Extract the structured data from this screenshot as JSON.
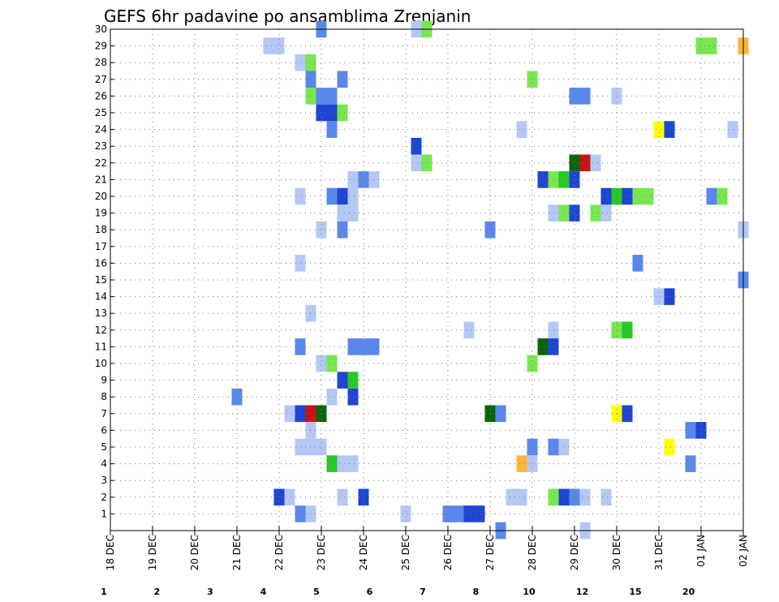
{
  "chart_data": {
    "type": "heatmap",
    "title": "GEFS 6hr padavine po ansamblima Zrenjanin",
    "x_tick_labels": [
      "18 DEC",
      "19 DEC",
      "20 DEC",
      "21 DEC",
      "22 DEC",
      "23 DEC",
      "24 DEC",
      "25 DEC",
      "26 DEC",
      "27 DEC",
      "28 DEC",
      "29 DEC",
      "30 DEC",
      "31 DEC",
      "01 JAN",
      "02 JAN"
    ],
    "y_tick_labels": [
      "1",
      "2",
      "3",
      "4",
      "5",
      "6",
      "7",
      "8",
      "9",
      "10",
      "11",
      "12",
      "13",
      "14",
      "15",
      "16",
      "17",
      "18",
      "19",
      "20",
      "21",
      "22",
      "23",
      "24",
      "25",
      "26",
      "27",
      "28",
      "29",
      "30"
    ],
    "xlim": [
      0,
      60
    ],
    "ylim": [
      0,
      30
    ],
    "grid": true,
    "colorbar": {
      "labels": [
        "1",
        "2",
        "3",
        "4",
        "5",
        "6",
        "7",
        "8",
        "10",
        "12",
        "15",
        "20"
      ],
      "colors": [
        "#b4c8f5",
        "#5a87eb",
        "#1e46d2",
        "#78e650",
        "#28c828",
        "#0a640a",
        "#ffff00",
        "#ffb43c",
        "#ff8c1e",
        "#e6461e",
        "#c81414",
        "#6e0000"
      ]
    },
    "cells": [
      {
        "member": 30,
        "steps": [
          [
            20,
            2
          ],
          [
            29,
            1
          ],
          [
            30,
            4
          ]
        ]
      },
      {
        "member": 29,
        "steps": [
          [
            15,
            1
          ],
          [
            16,
            1
          ],
          [
            56,
            4
          ],
          [
            57,
            4
          ],
          [
            60,
            8
          ]
        ]
      },
      {
        "member": 28,
        "steps": [
          [
            18,
            1
          ],
          [
            19,
            4
          ]
        ]
      },
      {
        "member": 27,
        "steps": [
          [
            19,
            2
          ],
          [
            22,
            2
          ],
          [
            40,
            4
          ]
        ]
      },
      {
        "member": 26,
        "steps": [
          [
            19,
            4
          ],
          [
            20,
            2
          ],
          [
            21,
            2
          ],
          [
            44,
            2
          ],
          [
            45,
            2
          ],
          [
            48,
            1
          ]
        ]
      },
      {
        "member": 25,
        "steps": [
          [
            20,
            3
          ],
          [
            21,
            3
          ],
          [
            22,
            4
          ]
        ]
      },
      {
        "member": 24,
        "steps": [
          [
            21,
            2
          ],
          [
            39,
            1
          ],
          [
            52,
            7
          ],
          [
            53,
            3
          ],
          [
            59,
            1
          ]
        ]
      },
      {
        "member": 23,
        "steps": [
          [
            29,
            3
          ]
        ]
      },
      {
        "member": 22,
        "steps": [
          [
            29,
            1
          ],
          [
            30,
            4
          ],
          [
            44,
            6
          ],
          [
            45,
            11
          ],
          [
            46,
            1
          ]
        ]
      },
      {
        "member": 21,
        "steps": [
          [
            23,
            1
          ],
          [
            24,
            2
          ],
          [
            25,
            1
          ],
          [
            41,
            3
          ],
          [
            42,
            4
          ],
          [
            43,
            5
          ],
          [
            44,
            3
          ]
        ]
      },
      {
        "member": 20,
        "steps": [
          [
            18,
            1
          ],
          [
            21,
            2
          ],
          [
            22,
            3
          ],
          [
            23,
            1
          ],
          [
            47,
            3
          ],
          [
            48,
            5
          ],
          [
            49,
            3
          ],
          [
            50,
            4
          ],
          [
            51,
            4
          ],
          [
            57,
            2
          ],
          [
            58,
            4
          ]
        ]
      },
      {
        "member": 19,
        "steps": [
          [
            22,
            1
          ],
          [
            23,
            1
          ],
          [
            42,
            1
          ],
          [
            43,
            4
          ],
          [
            44,
            3
          ],
          [
            46,
            4
          ],
          [
            47,
            1
          ]
        ]
      },
      {
        "member": 18,
        "steps": [
          [
            20,
            1
          ],
          [
            22,
            2
          ],
          [
            36,
            2
          ],
          [
            60,
            1
          ]
        ]
      },
      {
        "member": 16,
        "steps": [
          [
            18,
            1
          ],
          [
            50,
            2
          ]
        ]
      },
      {
        "member": 15,
        "steps": [
          [
            60,
            2
          ]
        ]
      },
      {
        "member": 14,
        "steps": [
          [
            52,
            1
          ],
          [
            53,
            3
          ]
        ]
      },
      {
        "member": 13,
        "steps": [
          [
            19,
            1
          ]
        ]
      },
      {
        "member": 12,
        "steps": [
          [
            34,
            1
          ],
          [
            42,
            1
          ],
          [
            48,
            4
          ],
          [
            49,
            5
          ]
        ]
      },
      {
        "member": 11,
        "steps": [
          [
            18,
            2
          ],
          [
            23,
            2
          ],
          [
            24,
            2
          ],
          [
            25,
            2
          ],
          [
            41,
            6
          ],
          [
            42,
            3
          ]
        ]
      },
      {
        "member": 10,
        "steps": [
          [
            20,
            1
          ],
          [
            21,
            4
          ],
          [
            40,
            4
          ]
        ]
      },
      {
        "member": 9,
        "steps": [
          [
            22,
            3
          ],
          [
            23,
            5
          ]
        ]
      },
      {
        "member": 8,
        "steps": [
          [
            12,
            2
          ],
          [
            21,
            1
          ],
          [
            23,
            3
          ]
        ]
      },
      {
        "member": 7,
        "steps": [
          [
            17,
            1
          ],
          [
            18,
            3
          ],
          [
            19,
            11
          ],
          [
            20,
            6
          ],
          [
            36,
            6
          ],
          [
            37,
            2
          ],
          [
            48,
            7
          ],
          [
            49,
            3
          ]
        ]
      },
      {
        "member": 6,
        "steps": [
          [
            19,
            1
          ],
          [
            55,
            2
          ],
          [
            56,
            3
          ]
        ]
      },
      {
        "member": 5,
        "steps": [
          [
            18,
            1
          ],
          [
            19,
            1
          ],
          [
            20,
            1
          ],
          [
            40,
            2
          ],
          [
            42,
            2
          ],
          [
            43,
            1
          ],
          [
            53,
            7
          ]
        ]
      },
      {
        "member": 4,
        "steps": [
          [
            21,
            5
          ],
          [
            22,
            1
          ],
          [
            23,
            1
          ],
          [
            39,
            8
          ],
          [
            40,
            1
          ],
          [
            55,
            2
          ]
        ]
      },
      {
        "member": 2,
        "steps": [
          [
            16,
            3
          ],
          [
            17,
            1
          ],
          [
            22,
            1
          ],
          [
            24,
            3
          ],
          [
            38,
            1
          ],
          [
            39,
            1
          ],
          [
            42,
            4
          ],
          [
            43,
            3
          ],
          [
            44,
            2
          ],
          [
            45,
            1
          ],
          [
            47,
            1
          ]
        ]
      },
      {
        "member": 1,
        "steps": [
          [
            18,
            2
          ],
          [
            19,
            1
          ],
          [
            28,
            1
          ],
          [
            32,
            2
          ],
          [
            33,
            2
          ],
          [
            34,
            3
          ],
          [
            35,
            3
          ]
        ]
      },
      {
        "member": 0,
        "steps": [
          [
            37,
            2
          ],
          [
            45,
            1
          ]
        ]
      }
    ]
  }
}
